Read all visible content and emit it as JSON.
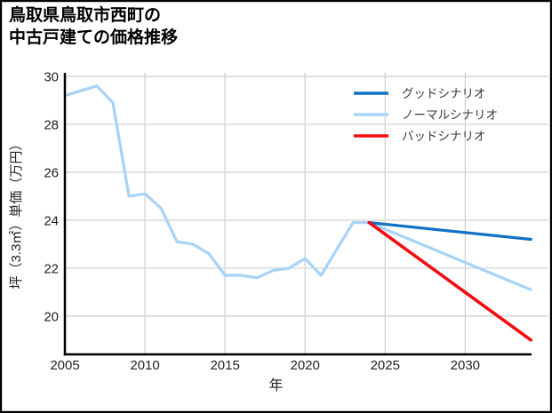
{
  "window": {
    "background": "#ffffff",
    "border_color": "#000000",
    "inner_border_color": "#cccccc"
  },
  "header": {
    "title_line1": "鳥取県鳥取市西町の",
    "title_line2": "中古戸建ての価格推移"
  },
  "chart_data": {
    "type": "line",
    "title": "鳥取県鳥取市西町の中古戸建ての価格推移",
    "xlabel": "年",
    "ylabel": "坪（3.3㎡）単価（万円）",
    "xlim": [
      2005,
      2035.2
    ],
    "ylim": [
      18.4,
      30.15
    ],
    "x_ticks": [
      2005,
      2010,
      2015,
      2020,
      2025,
      2030
    ],
    "y_ticks": [
      20,
      22,
      24,
      26,
      28,
      30
    ],
    "grid": true,
    "grid_color": "#d3d3d3",
    "axis_color": "#000000",
    "tick_label_color": "#222222",
    "legend": {
      "position": "upper-right",
      "text_color": "#3a3a3a"
    },
    "series": [
      {
        "id": "good-scenario",
        "name": "グッドシナリオ",
        "color": "#0f72c4",
        "line_width": 3.2,
        "z": 2,
        "x": [
          2024,
          2034.1
        ],
        "values": [
          23.9,
          23.2
        ]
      },
      {
        "id": "normal-scenario",
        "name": "ノーマルシナリオ",
        "color": "#a7d3f6",
        "line_width": 3.2,
        "z": 1,
        "x": [
          2005,
          2006,
          2007,
          2008,
          2009,
          2010,
          2011,
          2012,
          2013,
          2014,
          2015,
          2016,
          2017,
          2018,
          2019,
          2020,
          2021,
          2022,
          2023,
          2024,
          2034.1
        ],
        "values": [
          29.2,
          29.4,
          29.6,
          28.9,
          25.0,
          25.1,
          24.5,
          23.1,
          23.0,
          22.6,
          21.7,
          21.7,
          21.6,
          21.9,
          22.0,
          22.4,
          21.7,
          22.8,
          23.9,
          23.9,
          21.1
        ]
      },
      {
        "id": "bad-scenario",
        "name": "バッドシナリオ",
        "color": "#f30b10",
        "line_width": 3.6,
        "z": 3,
        "x": [
          2024,
          2034.1
        ],
        "values": [
          23.9,
          19.0
        ]
      }
    ]
  }
}
